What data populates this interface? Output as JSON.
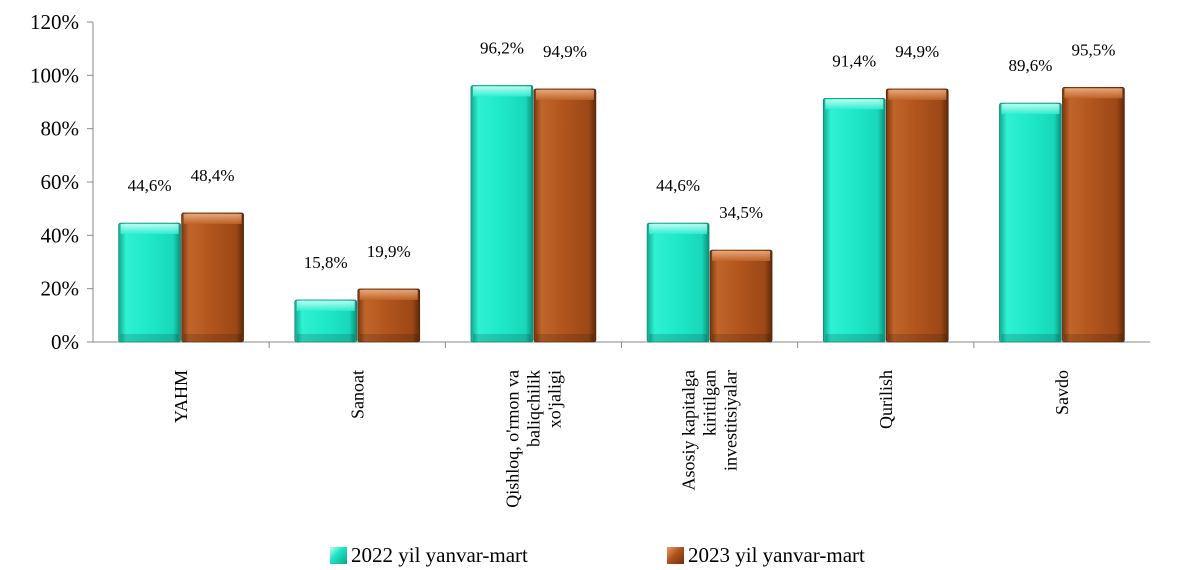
{
  "chart_data": {
    "type": "bar",
    "categories": [
      [
        "YAHM"
      ],
      [
        "Sanoat"
      ],
      [
        "Qishloq, o'rmon va",
        "baliqchilik",
        "xo'jaligi"
      ],
      [
        "Asosiy kapitalga",
        "kiritilgan",
        "investitsiyalar"
      ],
      [
        "Qurilish"
      ],
      [
        "Savdo"
      ]
    ],
    "series": [
      {
        "name": "2022 yil yanvar-mart",
        "values": [
          44.6,
          15.8,
          96.2,
          44.6,
          91.4,
          89.6
        ],
        "labels": [
          "44,6%",
          "15,8%",
          "96,2%",
          "44,6%",
          "91,4%",
          "89,6%"
        ],
        "color": "#1fe6c6"
      },
      {
        "name": "2023 yil yanvar-mart",
        "values": [
          48.4,
          19.9,
          94.9,
          34.5,
          94.9,
          95.5
        ],
        "labels": [
          "48,4%",
          "19,9%",
          "94,9%",
          "34,5%",
          "94,9%",
          "95,5%"
        ],
        "color": "#b0541c"
      }
    ],
    "ylim": [
      0,
      120
    ],
    "yticks": [
      "0%",
      "20%",
      "40%",
      "60%",
      "80%",
      "100%",
      "120%"
    ],
    "grid": false,
    "legend_position": "bottom"
  }
}
